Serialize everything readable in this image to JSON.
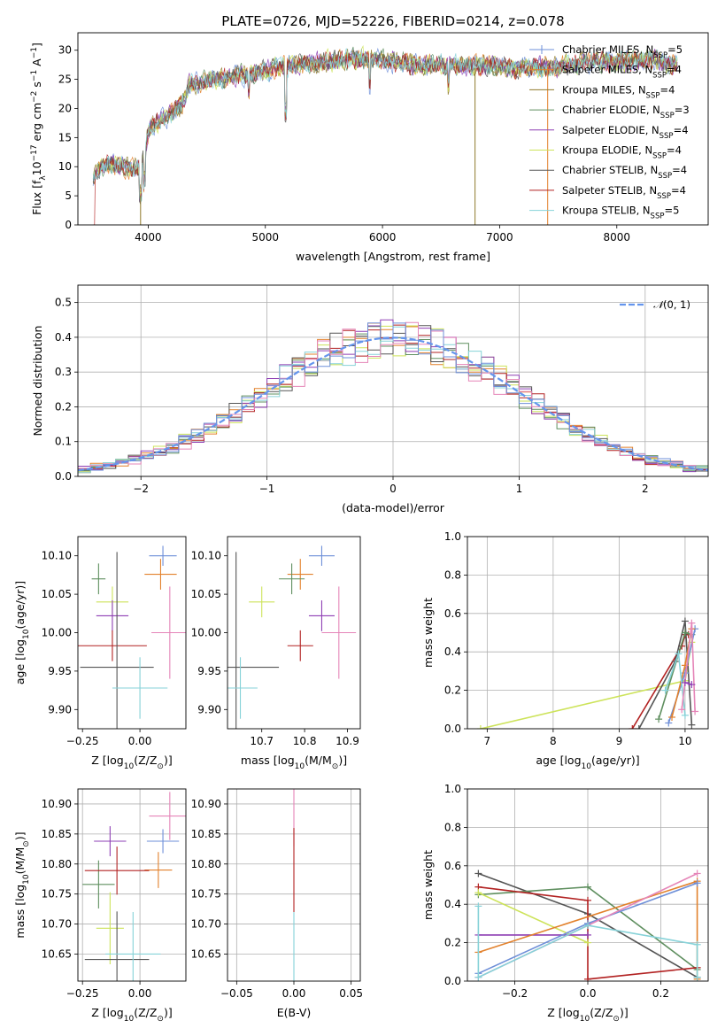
{
  "colors": {
    "chabrier_miles": "#6e8fd8",
    "salpeter_miles": "#e2812c",
    "kroupa_miles": "#8f7a2a",
    "chabrier_elodie": "#5f8f5f",
    "salpeter_elodie": "#8e3fb4",
    "kroupa_elodie": "#cde35a",
    "chabrier_stelib": "#555555",
    "salpeter_stelib": "#b22222",
    "kroupa_stelib": "#86d2d8",
    "pink": "#e585b8",
    "normal": "#6495ed",
    "grid": "#b0b0b0"
  },
  "chart_data": [
    {
      "id": "spectrum",
      "type": "line",
      "title": "PLATE=0726, MJD=52226, FIBERID=0214, z=0.078",
      "xlabel": "wavelength [Angstrom, rest frame]",
      "ylabel": "Flux [f",
      "ylabel_parts": [
        "Flux [f",
        "λ",
        "10",
        "−17",
        " erg cm",
        "−2",
        " s",
        "−1",
        " A",
        "−1",
        "]"
      ],
      "xlim": [
        3400,
        8780
      ],
      "ylim": [
        0,
        33
      ],
      "xticks": [
        4000,
        5000,
        6000,
        7000,
        8000
      ],
      "yticks": [
        0,
        5,
        10,
        15,
        20,
        25,
        30
      ],
      "grid": false,
      "legend_position": "right",
      "legend": [
        {
          "main": "Chabrier MILES, N",
          "sub": "SSP",
          "tail": "=5",
          "color": "chabrier_miles"
        },
        {
          "main": "Salpeter MILES, N",
          "sub": "SSP",
          "tail": "=4",
          "color": "salpeter_miles"
        },
        {
          "main": "Kroupa MILES, N",
          "sub": "SSP",
          "tail": "=4",
          "color": "kroupa_miles"
        },
        {
          "main": "Chabrier ELODIE, N",
          "sub": "SSP",
          "tail": "=3",
          "color": "chabrier_elodie"
        },
        {
          "main": "Salpeter ELODIE, N",
          "sub": "SSP",
          "tail": "=4",
          "color": "salpeter_elodie"
        },
        {
          "main": "Kroupa ELODIE, N",
          "sub": "SSP",
          "tail": "=4",
          "color": "kroupa_elodie"
        },
        {
          "main": "Chabrier STELIB, N",
          "sub": "SSP",
          "tail": "=4",
          "color": "chabrier_stelib"
        },
        {
          "main": "Salpeter STELIB, N",
          "sub": "SSP",
          "tail": "=4",
          "color": "salpeter_stelib"
        },
        {
          "main": "Kroupa STELIB, N",
          "sub": "SSP",
          "tail": "=5",
          "color": "kroupa_stelib"
        }
      ],
      "continuum": [
        [
          3530,
          8
        ],
        [
          3600,
          10
        ],
        [
          3700,
          10.5
        ],
        [
          3800,
          10
        ],
        [
          3900,
          9.5
        ],
        [
          3950,
          11
        ],
        [
          4000,
          16
        ],
        [
          4100,
          18
        ],
        [
          4200,
          19
        ],
        [
          4300,
          21
        ],
        [
          4350,
          24
        ],
        [
          4500,
          24.5
        ],
        [
          4700,
          25.5
        ],
        [
          4900,
          26
        ],
        [
          5100,
          27
        ],
        [
          5300,
          27.5
        ],
        [
          5500,
          28
        ],
        [
          5700,
          28.5
        ],
        [
          5900,
          28.5
        ],
        [
          6100,
          28
        ],
        [
          6300,
          27.5
        ],
        [
          6500,
          27.5
        ],
        [
          6700,
          27.5
        ],
        [
          6900,
          27.5
        ],
        [
          7100,
          27
        ],
        [
          7300,
          27
        ],
        [
          7500,
          27
        ],
        [
          7700,
          28
        ],
        [
          7900,
          28
        ],
        [
          8100,
          28
        ],
        [
          8300,
          28.5
        ],
        [
          8500,
          27.5
        ]
      ]
    },
    {
      "id": "residuals",
      "type": "histogram",
      "xlabel": "(data-model)/error",
      "ylabel": "Normed distribution",
      "xlim": [
        -2.5,
        2.5
      ],
      "ylim": [
        0,
        0.55
      ],
      "xticks": [
        -2,
        -1,
        0,
        1,
        2
      ],
      "yticks": [
        0.0,
        0.1,
        0.2,
        0.3,
        0.4,
        0.5
      ],
      "grid": true,
      "legend_position": "top-right",
      "legend_label_parts": [
        "𝒩",
        "(0, 1)"
      ],
      "bin_width": 0.1
    },
    {
      "id": "z-age",
      "type": "scatter",
      "xlabel_parts": [
        "Z [log",
        "10",
        "(Z/Z",
        "⊙",
        ")]"
      ],
      "ylabel_parts": [
        "age  [log",
        "10",
        "(age/yr)]"
      ],
      "xlim": [
        -0.27,
        0.2
      ],
      "ylim": [
        9.875,
        10.125
      ],
      "xticks": [
        -0.25,
        0.0
      ],
      "xtick_labels": [
        "−0.25",
        "0.00"
      ],
      "yticks": [
        9.9,
        9.95,
        10.0,
        10.05,
        10.1
      ],
      "grid": false,
      "points": [
        {
          "x": 0.1,
          "xerr": 0.06,
          "y": 10.1,
          "yerr": 0.013,
          "color": "chabrier_miles"
        },
        {
          "x": 0.09,
          "xerr": 0.07,
          "y": 10.076,
          "yerr": 0.02,
          "color": "salpeter_miles"
        },
        {
          "x": -0.18,
          "xerr": 0.03,
          "y": 10.07,
          "yerr": 0.02,
          "color": "chabrier_elodie"
        },
        {
          "x": -0.12,
          "xerr": 0.07,
          "y": 10.04,
          "yerr": 0.02,
          "color": "kroupa_elodie"
        },
        {
          "x": -0.12,
          "xerr": 0.07,
          "y": 10.022,
          "yerr": 0.02,
          "color": "salpeter_elodie"
        },
        {
          "x": 0.13,
          "xerr": 0.08,
          "y": 10.0,
          "yerr": 0.06,
          "color": "pink"
        },
        {
          "x": -0.12,
          "xerr": 0.15,
          "y": 9.983,
          "yerr": 0.02,
          "color": "salpeter_stelib"
        },
        {
          "x": -0.1,
          "xerr": 0.16,
          "y": 9.955,
          "yerr": 0.15,
          "color": "chabrier_stelib"
        },
        {
          "x": 0.0,
          "xerr": 0.12,
          "y": 9.928,
          "yerr": 0.04,
          "color": "kroupa_stelib"
        }
      ]
    },
    {
      "id": "mass-age",
      "type": "scatter",
      "xlabel_parts": [
        "mass [log",
        "10",
        "(M/M",
        "⊙",
        ")]"
      ],
      "ylabel_parts": [],
      "xlim": [
        10.62,
        10.93
      ],
      "ylim": [
        9.875,
        10.125
      ],
      "xticks": [
        10.7,
        10.8,
        10.9
      ],
      "xtick_labels": [
        "10.7",
        "10.8",
        "10.9"
      ],
      "yticks": [
        9.9,
        9.95,
        10.0,
        10.05,
        10.1
      ],
      "grid": false,
      "points": [
        {
          "x": 10.84,
          "xerr": 0.03,
          "y": 10.1,
          "yerr": 0.013,
          "color": "chabrier_miles"
        },
        {
          "x": 10.79,
          "xerr": 0.03,
          "y": 10.076,
          "yerr": 0.02,
          "color": "salpeter_miles"
        },
        {
          "x": 10.77,
          "xerr": 0.03,
          "y": 10.07,
          "yerr": 0.02,
          "color": "chabrier_elodie"
        },
        {
          "x": 10.7,
          "xerr": 0.03,
          "y": 10.04,
          "yerr": 0.02,
          "color": "kroupa_elodie"
        },
        {
          "x": 10.84,
          "xerr": 0.03,
          "y": 10.022,
          "yerr": 0.02,
          "color": "salpeter_elodie"
        },
        {
          "x": 10.88,
          "xerr": 0.04,
          "y": 10.0,
          "yerr": 0.06,
          "color": "pink"
        },
        {
          "x": 10.79,
          "xerr": 0.03,
          "y": 9.983,
          "yerr": 0.02,
          "color": "salpeter_stelib"
        },
        {
          "x": 10.64,
          "xerr": 0.1,
          "y": 9.955,
          "yerr": 0.15,
          "color": "chabrier_stelib"
        },
        {
          "x": 10.65,
          "xerr": 0.04,
          "y": 9.928,
          "yerr": 0.04,
          "color": "kroupa_stelib"
        }
      ]
    },
    {
      "id": "age-weight",
      "type": "line",
      "xlabel_parts": [
        "age  [log",
        "10",
        "(age/yr)]"
      ],
      "ylabel": "mass weight",
      "xlim": [
        6.7,
        10.35
      ],
      "ylim": [
        0,
        1.0
      ],
      "xticks": [
        7,
        8,
        9,
        10
      ],
      "yticks": [
        0.0,
        0.2,
        0.4,
        0.6,
        0.8,
        1.0
      ],
      "grid": true,
      "series": [
        {
          "color": "kroupa_elodie",
          "points": [
            [
              6.9,
              0.0
            ],
            [
              10.0,
              0.25
            ],
            [
              10.1,
              0.45
            ]
          ]
        },
        {
          "color": "salpeter_stelib",
          "points": [
            [
              9.2,
              0.0
            ],
            [
              9.95,
              0.43
            ],
            [
              10.0,
              0.49
            ],
            [
              10.05,
              0.49
            ]
          ]
        },
        {
          "color": "chabrier_stelib",
          "points": [
            [
              9.3,
              0.0
            ],
            [
              9.85,
              0.35
            ],
            [
              10.0,
              0.56
            ],
            [
              10.1,
              0.02
            ]
          ]
        },
        {
          "color": "chabrier_elodie",
          "points": [
            [
              9.6,
              0.05
            ],
            [
              10.0,
              0.5
            ],
            [
              10.1,
              0.49
            ]
          ]
        },
        {
          "color": "chabrier_miles",
          "points": [
            [
              9.75,
              0.03
            ],
            [
              10.0,
              0.29
            ],
            [
              10.15,
              0.52
            ]
          ]
        },
        {
          "color": "salpeter_miles",
          "points": [
            [
              9.8,
              0.06
            ],
            [
              10.0,
              0.33
            ],
            [
              10.1,
              0.52
            ]
          ]
        },
        {
          "color": "kroupa_stelib",
          "points": [
            [
              9.7,
              0.2
            ],
            [
              9.9,
              0.39
            ],
            [
              10.0,
              0.07
            ]
          ]
        },
        {
          "color": "pink",
          "points": [
            [
              9.95,
              0.1
            ],
            [
              10.1,
              0.55
            ],
            [
              10.15,
              0.09
            ]
          ]
        },
        {
          "color": "salpeter_elodie",
          "points": [
            [
              10.0,
              0.24
            ],
            [
              10.1,
              0.23
            ]
          ]
        }
      ]
    },
    {
      "id": "z-mass",
      "type": "scatter",
      "xlabel_parts": [
        "Z [log",
        "10",
        "(Z/Z",
        "⊙",
        ")]"
      ],
      "ylabel_parts": [
        "mass [log",
        "10",
        "(M/M",
        "⊙",
        ")]"
      ],
      "xlim": [
        -0.27,
        0.2
      ],
      "ylim": [
        10.605,
        10.925
      ],
      "xticks": [
        -0.25,
        0.0
      ],
      "xtick_labels": [
        "−0.25",
        "0.00"
      ],
      "yticks": [
        10.65,
        10.7,
        10.75,
        10.8,
        10.85,
        10.9
      ],
      "grid": true,
      "points": [
        {
          "x": 0.13,
          "xerr": 0.09,
          "y": 10.88,
          "yerr": 0.04,
          "color": "pink"
        },
        {
          "x": -0.18,
          "xerr": 0.07,
          "y": 10.766,
          "yerr": 0.04,
          "color": "chabrier_elodie"
        },
        {
          "x": -0.13,
          "xerr": 0.07,
          "y": 10.838,
          "yerr": 0.025,
          "color": "salpeter_elodie"
        },
        {
          "x": 0.1,
          "xerr": 0.07,
          "y": 10.838,
          "yerr": 0.02,
          "color": "chabrier_miles"
        },
        {
          "x": 0.08,
          "xerr": 0.06,
          "y": 10.79,
          "yerr": 0.03,
          "color": "salpeter_miles"
        },
        {
          "x": -0.1,
          "xerr": 0.14,
          "y": 10.789,
          "yerr": 0.04,
          "color": "salpeter_stelib"
        },
        {
          "x": -0.13,
          "xerr": 0.06,
          "y": 10.693,
          "yerr": 0.06,
          "color": "kroupa_elodie"
        },
        {
          "x": -0.1,
          "xerr": 0.14,
          "y": 10.641,
          "yerr": 0.08,
          "color": "chabrier_stelib"
        },
        {
          "x": -0.03,
          "xerr": 0.12,
          "y": 10.65,
          "yerr": 0.07,
          "color": "kroupa_stelib"
        }
      ]
    },
    {
      "id": "ebv-mass",
      "type": "scatter",
      "xlabel": "E(B-V)",
      "ylabel_parts": [],
      "xlim": [
        -0.058,
        0.058
      ],
      "ylim": [
        10.605,
        10.925
      ],
      "xticks": [
        -0.05,
        0.0,
        0.05
      ],
      "xtick_labels": [
        "−0.05",
        "0.00",
        "0.05"
      ],
      "yticks": [
        10.65,
        10.7,
        10.75,
        10.8,
        10.85,
        10.9
      ],
      "grid": true,
      "points": [
        {
          "x": 0.0,
          "xerr": 0.0,
          "y": 10.88,
          "yerr": 0.05,
          "color": "pink"
        },
        {
          "x": 0.0,
          "xerr": 0.0,
          "y": 10.79,
          "yerr": 0.07,
          "color": "salpeter_stelib"
        },
        {
          "x": 0.0,
          "xerr": 0.0,
          "y": 10.65,
          "yerr": 0.07,
          "color": "kroupa_stelib"
        }
      ]
    },
    {
      "id": "z-weight",
      "type": "line",
      "xlabel_parts": [
        "Z [log",
        "10",
        "(Z/Z",
        "⊙",
        ")]"
      ],
      "ylabel": "mass weight",
      "xlim": [
        -0.33,
        0.33
      ],
      "ylim": [
        0,
        1.0
      ],
      "xticks": [
        -0.2,
        0.0,
        0.2
      ],
      "xtick_labels": [
        "−0.2",
        "0.0",
        "0.2"
      ],
      "yticks": [
        0.0,
        0.2,
        0.4,
        0.6,
        0.8,
        1.0
      ],
      "grid": true,
      "series": [
        {
          "color": "chabrier_stelib",
          "points": [
            [
              -0.3,
              0.56
            ],
            [
              0.0,
              0.35
            ],
            [
              0.3,
              0.02
            ]
          ]
        },
        {
          "color": "chabrier_elodie",
          "points": [
            [
              -0.3,
              0.45
            ],
            [
              0.0,
              0.49
            ],
            [
              0.3,
              0.06
            ]
          ]
        },
        {
          "color": "salpeter_stelib",
          "points": [
            [
              -0.3,
              0.49
            ],
            [
              0.0,
              0.42
            ],
            [
              0.0,
              0.01
            ],
            [
              0.3,
              0.07
            ]
          ]
        },
        {
          "color": "kroupa_elodie",
          "points": [
            [
              -0.3,
              0.46
            ],
            [
              0.0,
              0.2
            ]
          ]
        },
        {
          "color": "salpeter_elodie",
          "points": [
            [
              -0.3,
              0.24
            ],
            [
              0.0,
              0.24
            ]
          ]
        },
        {
          "color": "salpeter_miles",
          "points": [
            [
              -0.3,
              0.15
            ],
            [
              0.3,
              0.52
            ],
            [
              0.3,
              0.01
            ]
          ]
        },
        {
          "color": "chabrier_miles",
          "points": [
            [
              -0.3,
              0.04
            ],
            [
              0.0,
              0.3
            ],
            [
              0.3,
              0.51
            ]
          ]
        },
        {
          "color": "pink",
          "points": [
            [
              -0.3,
              0.02
            ],
            [
              0.3,
              0.56
            ]
          ]
        },
        {
          "color": "kroupa_stelib",
          "points": [
            [
              -0.3,
              0.39
            ],
            [
              -0.3,
              0.02
            ],
            [
              0.0,
              0.29
            ],
            [
              0.3,
              0.19
            ],
            [
              0.3,
              0.02
            ]
          ]
        }
      ]
    }
  ]
}
